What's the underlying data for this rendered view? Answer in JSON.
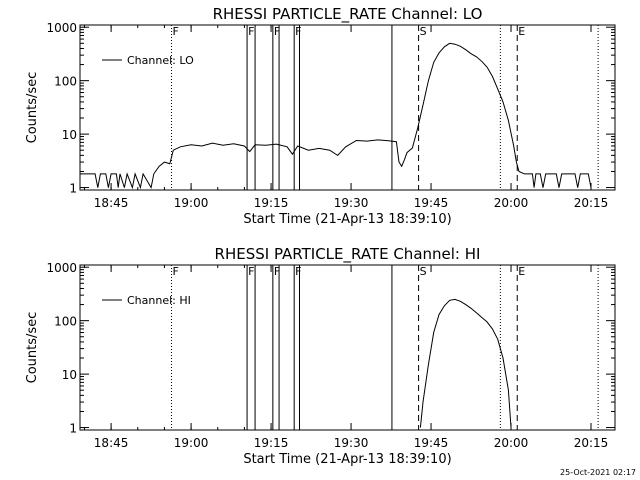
{
  "footer": {
    "timestamp": "25-Oct-2021 02:17"
  },
  "chart_data": [
    {
      "type": "line",
      "title": "RHESSI PARTICLE_RATE Channel: LO",
      "xlabel": "Start Time (21-Apr-13 18:39:10)",
      "ylabel": "Counts/sec",
      "yscale": "log",
      "ylim": [
        0.9,
        1100
      ],
      "xlim": [
        "18:39:10",
        "20:19:30"
      ],
      "x_ticks": [
        "18:45",
        "19:00",
        "19:15",
        "19:30",
        "19:45",
        "20:00",
        "20:15"
      ],
      "y_ticks": [
        "1",
        "10",
        "100",
        "1000"
      ],
      "legend": "top-left",
      "legend_entries": [
        "Channel: LO"
      ],
      "grid": false,
      "markers": [
        {
          "label": "F",
          "time": "18:56:20",
          "style": "dotted"
        },
        {
          "label": "F",
          "time": "19:10:30",
          "style": "solid"
        },
        {
          "label": "",
          "time": "19:12:00",
          "style": "solid"
        },
        {
          "label": "F",
          "time": "19:15:20",
          "style": "solid"
        },
        {
          "label": "",
          "time": "19:16:30",
          "style": "solid"
        },
        {
          "label": "F",
          "time": "19:19:20",
          "style": "solid"
        },
        {
          "label": "",
          "time": "19:20:20",
          "style": "solid"
        },
        {
          "label": "",
          "time": "19:37:40",
          "style": "solid"
        },
        {
          "label": "S",
          "time": "19:42:40",
          "style": "dashed"
        },
        {
          "label": "",
          "time": "19:58:00",
          "style": "dotted"
        },
        {
          "label": "E",
          "time": "20:01:10",
          "style": "dashed"
        },
        {
          "label": "",
          "time": "20:16:20",
          "style": "dotted"
        }
      ],
      "series": [
        {
          "name": "Channel: LO",
          "points": [
            [
              "18:39:10",
              1.8
            ],
            [
              "18:42:00",
              1.8
            ],
            [
              "18:42:30",
              1.0
            ],
            [
              "18:43:00",
              1.8
            ],
            [
              "18:44:00",
              1.8
            ],
            [
              "18:44:30",
              1.0
            ],
            [
              "18:45:00",
              1.8
            ],
            [
              "18:46:00",
              1.8
            ],
            [
              "18:46:20",
              1.0
            ],
            [
              "18:46:40",
              1.8
            ],
            [
              "18:47:30",
              1.0
            ],
            [
              "18:48:00",
              1.8
            ],
            [
              "18:49:00",
              1.0
            ],
            [
              "18:49:30",
              1.8
            ],
            [
              "18:50:30",
              1.0
            ],
            [
              "18:51:00",
              1.8
            ],
            [
              "18:52:30",
              1.0
            ],
            [
              "18:53:00",
              1.8
            ],
            [
              "18:54:00",
              2.5
            ],
            [
              "18:55:00",
              3.0
            ],
            [
              "18:56:00",
              2.8
            ],
            [
              "18:56:40",
              5.0
            ],
            [
              "18:58:00",
              5.8
            ],
            [
              "19:00:00",
              6.3
            ],
            [
              "19:02:00",
              6.0
            ],
            [
              "19:04:00",
              6.8
            ],
            [
              "19:06:00",
              6.2
            ],
            [
              "19:08:00",
              6.6
            ],
            [
              "19:10:00",
              6.0
            ],
            [
              "19:11:00",
              4.7
            ],
            [
              "19:12:00",
              6.3
            ],
            [
              "19:14:00",
              6.2
            ],
            [
              "19:16:00",
              6.5
            ],
            [
              "19:18:00",
              5.8
            ],
            [
              "19:19:00",
              4.2
            ],
            [
              "19:20:00",
              6.0
            ],
            [
              "19:22:00",
              5.0
            ],
            [
              "19:24:00",
              5.4
            ],
            [
              "19:26:00",
              5.0
            ],
            [
              "19:27:30",
              4.0
            ],
            [
              "19:29:00",
              5.8
            ],
            [
              "19:31:00",
              7.6
            ],
            [
              "19:33:00",
              7.4
            ],
            [
              "19:35:00",
              7.8
            ],
            [
              "19:37:00",
              7.5
            ],
            [
              "19:38:30",
              7.2
            ],
            [
              "19:39:00",
              3.0
            ],
            [
              "19:39:30",
              2.5
            ],
            [
              "19:40:00",
              3.3
            ],
            [
              "19:40:30",
              4.5
            ],
            [
              "19:41:30",
              5.5
            ],
            [
              "19:42:30",
              13.0
            ],
            [
              "19:43:30",
              35.0
            ],
            [
              "19:44:30",
              100.0
            ],
            [
              "19:45:30",
              220.0
            ],
            [
              "19:46:30",
              330.0
            ],
            [
              "19:47:30",
              430.0
            ],
            [
              "19:48:30",
              500.0
            ],
            [
              "19:49:30",
              480.0
            ],
            [
              "19:50:30",
              440.0
            ],
            [
              "19:51:30",
              380.0
            ],
            [
              "19:52:30",
              320.0
            ],
            [
              "19:53:30",
              280.0
            ],
            [
              "19:54:30",
              230.0
            ],
            [
              "19:55:30",
              180.0
            ],
            [
              "19:56:30",
              120.0
            ],
            [
              "19:57:30",
              70.0
            ],
            [
              "19:58:30",
              40.0
            ],
            [
              "19:59:30",
              18.0
            ],
            [
              "20:00:30",
              6.0
            ],
            [
              "20:01:00",
              3.0
            ],
            [
              "20:01:30",
              2.0
            ],
            [
              "20:02:30",
              1.8
            ],
            [
              "20:04:00",
              1.8
            ],
            [
              "20:04:20",
              1.0
            ],
            [
              "20:04:40",
              1.8
            ],
            [
              "20:05:30",
              1.8
            ],
            [
              "20:06:00",
              1.0
            ],
            [
              "20:06:30",
              1.8
            ],
            [
              "20:08:30",
              1.8
            ],
            [
              "20:09:00",
              1.0
            ],
            [
              "20:09:30",
              1.8
            ],
            [
              "20:12:00",
              1.8
            ],
            [
              "20:12:30",
              1.0
            ],
            [
              "20:13:00",
              1.8
            ],
            [
              "20:14:30",
              1.8
            ],
            [
              "20:15:00",
              1.0
            ]
          ]
        }
      ]
    },
    {
      "type": "line",
      "title": "RHESSI PARTICLE_RATE Channel: HI",
      "xlabel": "Start Time (21-Apr-13 18:39:10)",
      "ylabel": "Counts/sec",
      "yscale": "log",
      "ylim": [
        0.9,
        1100
      ],
      "xlim": [
        "18:39:10",
        "20:19:30"
      ],
      "x_ticks": [
        "18:45",
        "19:00",
        "19:15",
        "19:30",
        "19:45",
        "20:00",
        "20:15"
      ],
      "y_ticks": [
        "1",
        "10",
        "100",
        "1000"
      ],
      "legend": "top-left",
      "legend_entries": [
        "Channel: HI"
      ],
      "grid": false,
      "markers": [
        {
          "label": "F",
          "time": "18:56:20",
          "style": "dotted"
        },
        {
          "label": "F",
          "time": "19:10:30",
          "style": "solid"
        },
        {
          "label": "",
          "time": "19:12:00",
          "style": "solid"
        },
        {
          "label": "F",
          "time": "19:15:20",
          "style": "solid"
        },
        {
          "label": "",
          "time": "19:16:30",
          "style": "solid"
        },
        {
          "label": "F",
          "time": "19:19:20",
          "style": "solid"
        },
        {
          "label": "",
          "time": "19:20:20",
          "style": "solid"
        },
        {
          "label": "",
          "time": "19:37:40",
          "style": "solid"
        },
        {
          "label": "S",
          "time": "19:42:40",
          "style": "dashed"
        },
        {
          "label": "",
          "time": "19:58:00",
          "style": "dotted"
        },
        {
          "label": "E",
          "time": "20:01:10",
          "style": "dashed"
        },
        {
          "label": "",
          "time": "20:16:20",
          "style": "dotted"
        }
      ],
      "series": [
        {
          "name": "Channel: HI",
          "points": [
            [
              "19:43:00",
              1.0
            ],
            [
              "19:43:30",
              3.0
            ],
            [
              "19:44:30",
              15.0
            ],
            [
              "19:45:30",
              60.0
            ],
            [
              "19:46:30",
              130.0
            ],
            [
              "19:47:30",
              190.0
            ],
            [
              "19:48:30",
              240.0
            ],
            [
              "19:49:30",
              250.0
            ],
            [
              "19:50:30",
              230.0
            ],
            [
              "19:51:30",
              200.0
            ],
            [
              "19:52:30",
              170.0
            ],
            [
              "19:53:30",
              140.0
            ],
            [
              "19:54:30",
              115.0
            ],
            [
              "19:55:30",
              95.0
            ],
            [
              "19:56:30",
              70.0
            ],
            [
              "19:57:30",
              45.0
            ],
            [
              "19:58:30",
              20.0
            ],
            [
              "19:59:30",
              5.0
            ],
            [
              "20:00:00",
              1.0
            ]
          ]
        }
      ]
    }
  ]
}
